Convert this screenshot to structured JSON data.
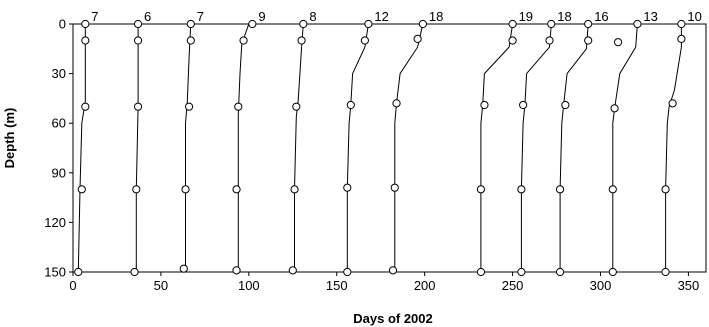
{
  "chart_data": {
    "type": "scatter",
    "title": "",
    "xlabel": "Days of 2002",
    "ylabel": "Depth (m)",
    "xlim": [
      0,
      360
    ],
    "ylim": [
      0,
      150
    ],
    "y_inverted": true,
    "grid": false,
    "legend": "none",
    "xticks": [
      0,
      50,
      100,
      150,
      200,
      250,
      300,
      350
    ],
    "yticks": [
      0,
      30,
      60,
      90,
      120,
      150
    ],
    "line_color": "#000000",
    "marker": "open-circle",
    "profiles": [
      {
        "label": "7",
        "points": [
          [
            7,
            0
          ],
          [
            7,
            10
          ],
          [
            7,
            50
          ],
          [
            5,
            100
          ],
          [
            3,
            150
          ]
        ],
        "curve": [
          [
            7,
            0
          ],
          [
            7,
            10
          ],
          [
            7,
            47
          ],
          [
            5,
            60
          ],
          [
            4,
            100
          ],
          [
            3,
            150
          ]
        ]
      },
      {
        "label": "6",
        "points": [
          [
            37,
            0
          ],
          [
            37,
            10
          ],
          [
            37,
            50
          ],
          [
            36,
            100
          ],
          [
            35,
            150
          ]
        ],
        "curve": [
          [
            37,
            0
          ],
          [
            37,
            10
          ],
          [
            37,
            50
          ],
          [
            36,
            100
          ],
          [
            36,
            150
          ]
        ]
      },
      {
        "label": "7",
        "points": [
          [
            67,
            0
          ],
          [
            67,
            10
          ],
          [
            66,
            50
          ],
          [
            64,
            100
          ],
          [
            63,
            148
          ]
        ],
        "curve": [
          [
            67,
            0
          ],
          [
            66,
            20
          ],
          [
            65,
            47
          ],
          [
            64,
            60
          ],
          [
            64,
            100
          ],
          [
            64,
            148
          ]
        ]
      },
      {
        "label": "9",
        "points": [
          [
            102,
            0
          ],
          [
            97,
            10
          ],
          [
            94,
            50
          ],
          [
            93,
            100
          ],
          [
            93,
            149
          ]
        ],
        "curve": [
          [
            100,
            0
          ],
          [
            96,
            12
          ],
          [
            95,
            30
          ],
          [
            94,
            55
          ],
          [
            94,
            100
          ],
          [
            94,
            149
          ]
        ]
      },
      {
        "label": "8",
        "points": [
          [
            131,
            0
          ],
          [
            130,
            10
          ],
          [
            127,
            50
          ],
          [
            126,
            100
          ],
          [
            125,
            149
          ]
        ],
        "curve": [
          [
            131,
            0
          ],
          [
            130,
            14
          ],
          [
            128,
            47
          ],
          [
            127,
            56
          ],
          [
            126,
            100
          ],
          [
            126,
            149
          ]
        ]
      },
      {
        "label": "12",
        "points": [
          [
            168,
            0
          ],
          [
            166,
            10
          ],
          [
            158,
            49
          ],
          [
            156,
            99
          ],
          [
            156,
            150
          ]
        ],
        "curve": [
          [
            168,
            0
          ],
          [
            166,
            14
          ],
          [
            159,
            30
          ],
          [
            158,
            49
          ],
          [
            157,
            60
          ],
          [
            156,
            100
          ],
          [
            156,
            150
          ]
        ]
      },
      {
        "label": "18",
        "points": [
          [
            199,
            0
          ],
          [
            196,
            9
          ],
          [
            184,
            48
          ],
          [
            183,
            99
          ],
          [
            182,
            149
          ]
        ],
        "curve": [
          [
            199,
            0
          ],
          [
            196,
            14
          ],
          [
            186,
            30
          ],
          [
            184,
            48
          ],
          [
            183,
            60
          ],
          [
            183,
            100
          ],
          [
            183,
            149
          ]
        ]
      },
      {
        "label": "19",
        "points": [
          [
            250,
            0
          ],
          [
            250,
            10
          ],
          [
            234,
            49
          ],
          [
            232,
            100
          ],
          [
            232,
            150
          ]
        ],
        "curve": [
          [
            250,
            0
          ],
          [
            248,
            14
          ],
          [
            234,
            30
          ],
          [
            233,
            49
          ],
          [
            232,
            60
          ],
          [
            232,
            100
          ],
          [
            232,
            150
          ]
        ]
      },
      {
        "label": "18",
        "points": [
          [
            272,
            0
          ],
          [
            271,
            10
          ],
          [
            256,
            49
          ],
          [
            255,
            100
          ],
          [
            255,
            150
          ]
        ],
        "curve": [
          [
            272,
            0
          ],
          [
            271,
            14
          ],
          [
            258,
            30
          ],
          [
            257,
            49
          ],
          [
            256,
            60
          ],
          [
            255,
            100
          ],
          [
            255,
            150
          ]
        ]
      },
      {
        "label": "16",
        "points": [
          [
            293,
            0
          ],
          [
            293,
            10
          ],
          [
            280,
            49
          ],
          [
            277,
            100
          ],
          [
            277,
            150
          ]
        ],
        "curve": [
          [
            293,
            0
          ],
          [
            292,
            15
          ],
          [
            281,
            30
          ],
          [
            279,
            49
          ],
          [
            278,
            60
          ],
          [
            277,
            100
          ],
          [
            277,
            150
          ]
        ]
      },
      {
        "label": "13",
        "points": [
          [
            321,
            0
          ],
          [
            310,
            11
          ],
          [
            308,
            51
          ],
          [
            307,
            100
          ],
          [
            307,
            150
          ]
        ],
        "curve": [
          [
            321,
            0
          ],
          [
            320,
            14
          ],
          [
            311,
            30
          ],
          [
            308,
            51
          ],
          [
            307,
            60
          ],
          [
            307,
            100
          ],
          [
            307,
            150
          ]
        ]
      },
      {
        "label": "10",
        "points": [
          [
            346,
            0
          ],
          [
            346,
            9
          ],
          [
            341,
            48
          ],
          [
            337,
            100
          ],
          [
            337,
            150
          ]
        ],
        "curve": [
          [
            346,
            0
          ],
          [
            346,
            14
          ],
          [
            342,
            40
          ],
          [
            339,
            50
          ],
          [
            338,
            60
          ],
          [
            337,
            100
          ],
          [
            337,
            150
          ]
        ]
      }
    ]
  }
}
